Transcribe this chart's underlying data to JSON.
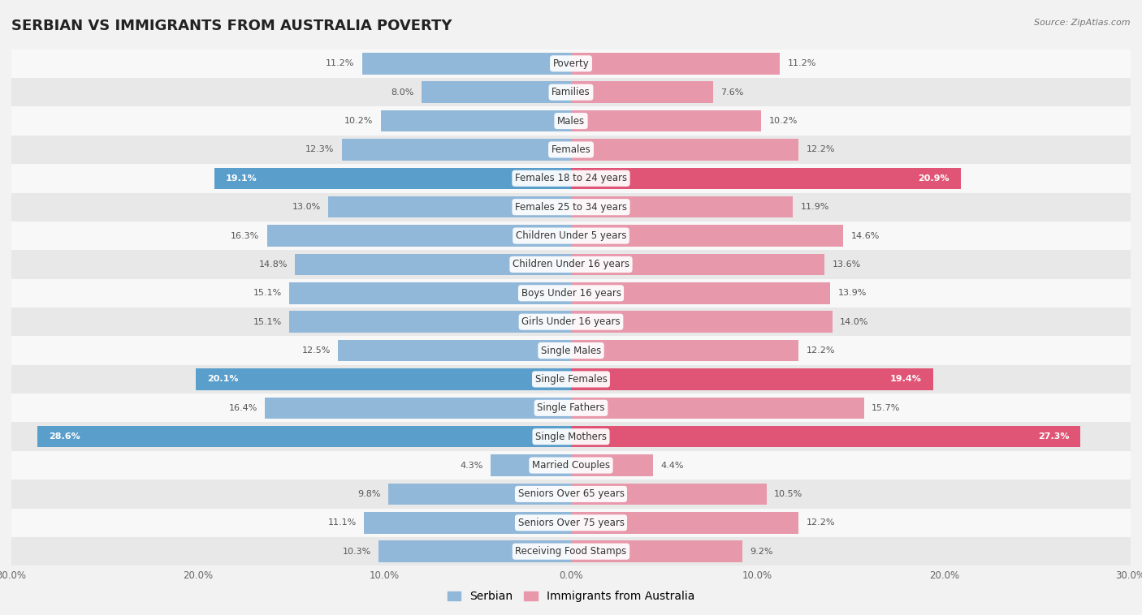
{
  "title": "SERBIAN VS IMMIGRANTS FROM AUSTRALIA POVERTY",
  "source": "Source: ZipAtlas.com",
  "categories": [
    "Poverty",
    "Families",
    "Males",
    "Females",
    "Females 18 to 24 years",
    "Females 25 to 34 years",
    "Children Under 5 years",
    "Children Under 16 years",
    "Boys Under 16 years",
    "Girls Under 16 years",
    "Single Males",
    "Single Females",
    "Single Fathers",
    "Single Mothers",
    "Married Couples",
    "Seniors Over 65 years",
    "Seniors Over 75 years",
    "Receiving Food Stamps"
  ],
  "serbian": [
    11.2,
    8.0,
    10.2,
    12.3,
    19.1,
    13.0,
    16.3,
    14.8,
    15.1,
    15.1,
    12.5,
    20.1,
    16.4,
    28.6,
    4.3,
    9.8,
    11.1,
    10.3
  ],
  "immigrants": [
    11.2,
    7.6,
    10.2,
    12.2,
    20.9,
    11.9,
    14.6,
    13.6,
    13.9,
    14.0,
    12.2,
    19.4,
    15.7,
    27.3,
    4.4,
    10.5,
    12.2,
    9.2
  ],
  "serbian_color": "#92b8d9",
  "immigrants_color": "#e898ab",
  "serbian_highlight_color": "#5a9ecb",
  "immigrants_highlight_color": "#e05575",
  "highlight_rows": [
    4,
    11,
    13
  ],
  "xlim": 30.0,
  "bar_height": 0.75,
  "background_color": "#f2f2f2",
  "row_color_even": "#f8f8f8",
  "row_color_odd": "#e8e8e8",
  "title_fontsize": 13,
  "label_fontsize": 8.5,
  "value_fontsize": 8.0,
  "axis_fontsize": 8.5,
  "legend_fontsize": 10
}
